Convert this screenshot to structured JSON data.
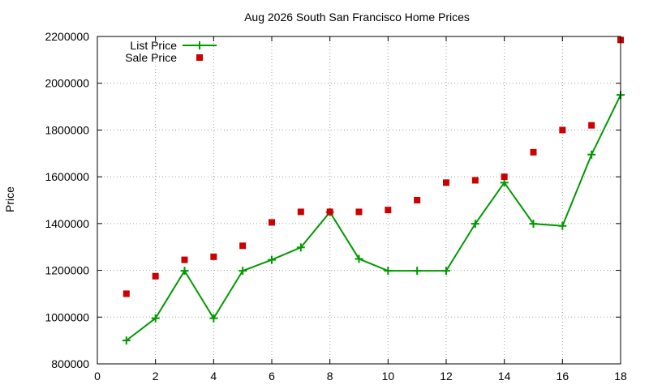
{
  "chart_data": {
    "type": "line",
    "title": "Aug 2026 South San Francisco Home Prices",
    "xlabel": "",
    "ylabel": "Price",
    "xlim": [
      0,
      18
    ],
    "ylim": [
      800000,
      2200000
    ],
    "xticks": [
      0,
      2,
      4,
      6,
      8,
      10,
      12,
      14,
      16,
      18
    ],
    "yticks": [
      800000,
      1000000,
      1200000,
      1400000,
      1600000,
      1800000,
      2000000,
      2200000
    ],
    "grid": true,
    "legend_position": "top-left",
    "series": [
      {
        "name": "List Price",
        "style": "line-points",
        "marker": "plus",
        "color": "#009900",
        "x": [
          1,
          2,
          3,
          4,
          5,
          6,
          7,
          8,
          9,
          10,
          11,
          12,
          13,
          14,
          15,
          16,
          17,
          18
        ],
        "values": [
          900000,
          995000,
          1198000,
          995000,
          1198000,
          1245000,
          1298000,
          1449000,
          1249000,
          1198000,
          1198000,
          1198000,
          1399000,
          1575000,
          1399000,
          1390000,
          1695000,
          1950000
        ]
      },
      {
        "name": "Sale Price",
        "style": "points",
        "marker": "square",
        "color": "#cc0000",
        "x": [
          1,
          2,
          3,
          4,
          5,
          6,
          7,
          8,
          9,
          10,
          11,
          12,
          13,
          14,
          15,
          16,
          17,
          18
        ],
        "values": [
          1100000,
          1175000,
          1245000,
          1258000,
          1305000,
          1405000,
          1450000,
          1450000,
          1450000,
          1458000,
          1500000,
          1575000,
          1585000,
          1600000,
          1705000,
          1800000,
          1820000,
          2185000
        ]
      }
    ]
  }
}
